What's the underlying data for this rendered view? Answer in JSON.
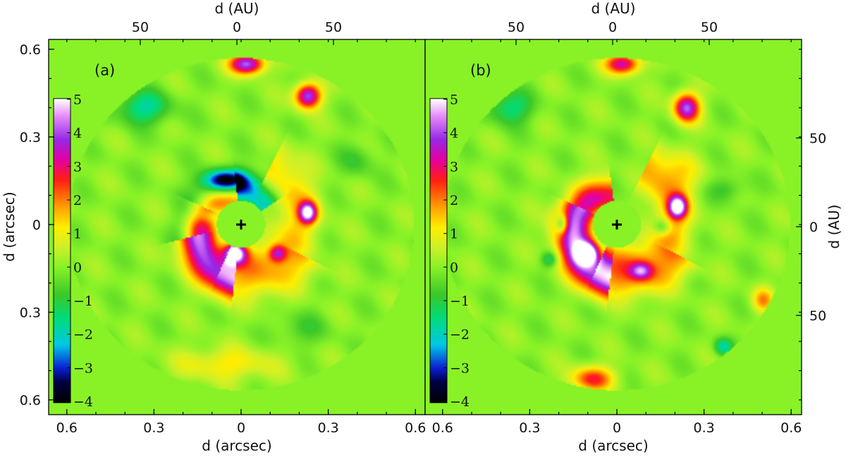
{
  "chart_data": {
    "type": "heatmap",
    "panels": [
      {
        "label": "(a)",
        "colorbar": {
          "min": -4,
          "max": 5,
          "ticks": [
            "5",
            "4",
            "3",
            "2",
            "1",
            "0",
            "−1",
            "−2",
            "−3",
            "−4"
          ]
        },
        "mask_radius_arcsec": 0.57,
        "inner_mask_radius_arcsec": 0.08,
        "star": [
          0,
          0
        ],
        "features": [
          {
            "kind": "spiral",
            "r0": 0.1,
            "b": 0.22,
            "theta0": 1.7,
            "theta1": 4.6,
            "value": 3.2,
            "width": 0.045
          },
          {
            "kind": "spiral",
            "r0": 0.12,
            "b": 0.2,
            "theta0": 4.3,
            "theta1": 7.4,
            "value": 1.4,
            "width": 0.055
          },
          {
            "kind": "spiral",
            "r0": 0.1,
            "b": 0.22,
            "theta0": 0.6,
            "theta1": 3.4,
            "value": -2.2,
            "width": 0.04
          },
          {
            "kind": "spiral",
            "r0": 0.14,
            "b": 0.18,
            "theta0": 2.7,
            "theta1": 5.8,
            "value": 0.9,
            "width": 0.05
          },
          {
            "kind": "blob",
            "x": 0.02,
            "y": 0.55,
            "sx": 0.04,
            "sy": 0.025,
            "value": 4.3
          },
          {
            "kind": "blob",
            "x": 0.22,
            "y": 0.44,
            "sx": 0.03,
            "sy": 0.03,
            "value": 4.2
          },
          {
            "kind": "blob",
            "x": 0.22,
            "y": 0.04,
            "sx": 0.02,
            "sy": 0.025,
            "value": 4.5
          },
          {
            "kind": "blob",
            "x": -0.05,
            "y": 0.15,
            "sx": 0.05,
            "sy": 0.025,
            "value": -3.6
          },
          {
            "kind": "blob",
            "x": -0.32,
            "y": 0.4,
            "sx": 0.06,
            "sy": 0.04,
            "value": -1.8
          },
          {
            "kind": "blob",
            "x": -0.02,
            "y": -0.1,
            "sx": 0.025,
            "sy": 0.025,
            "value": 4.8
          },
          {
            "kind": "blob",
            "x": 0.12,
            "y": -0.1,
            "sx": 0.02,
            "sy": 0.02,
            "value": 2.4
          },
          {
            "kind": "blob",
            "x": -0.1,
            "y": 0.03,
            "sx": 0.03,
            "sy": 0.02,
            "value": -1.2
          },
          {
            "kind": "blob",
            "x": 0.38,
            "y": 0.22,
            "sx": 0.04,
            "sy": 0.04,
            "value": -0.8
          },
          {
            "kind": "blob",
            "x": -0.05,
            "y": -0.48,
            "sx": 0.12,
            "sy": 0.04,
            "value": 1.2
          },
          {
            "kind": "blob",
            "x": 0.2,
            "y": -0.36,
            "sx": 0.06,
            "sy": 0.04,
            "value": -0.7
          }
        ]
      },
      {
        "label": "(b)",
        "colorbar": {
          "min": -4,
          "max": 5,
          "ticks": [
            "5",
            "4",
            "3",
            "2",
            "1",
            "0",
            "−1",
            "−2",
            "−3",
            "−4"
          ]
        },
        "mask_radius_arcsec": 0.57,
        "inner_mask_radius_arcsec": 0.08,
        "star": [
          0,
          0
        ],
        "features": [
          {
            "kind": "spiral",
            "r0": 0.1,
            "b": 0.22,
            "theta0": 1.7,
            "theta1": 4.6,
            "value": 3.1,
            "width": 0.045
          },
          {
            "kind": "spiral",
            "r0": 0.12,
            "b": 0.2,
            "theta0": 4.3,
            "theta1": 7.4,
            "value": 1.7,
            "width": 0.05
          },
          {
            "kind": "spiral",
            "r0": 0.14,
            "b": 0.18,
            "theta0": 2.7,
            "theta1": 5.8,
            "value": 1.2,
            "width": 0.045
          },
          {
            "kind": "blob",
            "x": 0.02,
            "y": 0.55,
            "sx": 0.04,
            "sy": 0.025,
            "value": 3.5
          },
          {
            "kind": "blob",
            "x": 0.23,
            "y": 0.4,
            "sx": 0.03,
            "sy": 0.035,
            "value": 4.1
          },
          {
            "kind": "blob",
            "x": 0.2,
            "y": 0.06,
            "sx": 0.02,
            "sy": 0.025,
            "value": 4.6
          },
          {
            "kind": "blob",
            "x": -0.1,
            "y": -0.1,
            "sx": 0.025,
            "sy": 0.025,
            "value": 5.0
          },
          {
            "kind": "blob",
            "x": 0.08,
            "y": -0.16,
            "sx": 0.025,
            "sy": 0.02,
            "value": 2.6
          },
          {
            "kind": "blob",
            "x": -0.18,
            "y": 0.0,
            "sx": 0.015,
            "sy": 0.025,
            "value": -2.6
          },
          {
            "kind": "blob",
            "x": -0.35,
            "y": 0.4,
            "sx": 0.05,
            "sy": 0.04,
            "value": -1.6
          },
          {
            "kind": "blob",
            "x": -0.22,
            "y": -0.12,
            "sx": 0.02,
            "sy": 0.02,
            "value": -1.6
          },
          {
            "kind": "blob",
            "x": 0.15,
            "y": -0.01,
            "sx": 0.02,
            "sy": 0.02,
            "value": -1.5
          },
          {
            "kind": "blob",
            "x": 0.35,
            "y": -0.42,
            "sx": 0.02,
            "sy": 0.02,
            "value": -1.8
          },
          {
            "kind": "blob",
            "x": 0.48,
            "y": -0.26,
            "sx": 0.025,
            "sy": 0.03,
            "value": 1.8
          },
          {
            "kind": "blob",
            "x": -0.08,
            "y": -0.53,
            "sx": 0.05,
            "sy": 0.03,
            "value": 2.6
          },
          {
            "kind": "blob",
            "x": 0.22,
            "y": 0.18,
            "sx": 0.05,
            "sy": 0.05,
            "value": 0.8
          },
          {
            "kind": "blob",
            "x": 0.36,
            "y": 0.12,
            "sx": 0.04,
            "sy": 0.03,
            "value": -0.9
          }
        ]
      }
    ],
    "x_axis": {
      "label": "d (arcsec)",
      "range": [
        -0.65,
        0.65
      ],
      "tick_values": [
        -0.6,
        -0.3,
        0,
        0.3,
        0.6
      ],
      "tick_labels": [
        "0.6",
        "0.3",
        "0",
        "0.3",
        "0.6"
      ]
    },
    "y_axis_left": {
      "label": "d (arcsec)",
      "range": [
        -0.6,
        0.6
      ],
      "tick_values": [
        0.6,
        0.3,
        0,
        -0.3,
        -0.6
      ],
      "tick_labels": [
        "0.6",
        "0.3",
        "0",
        "0.3",
        "0.6"
      ]
    },
    "x_axis_top": {
      "label": "d (AU)",
      "tick_values": [
        -50,
        0,
        50
      ],
      "tick_labels": [
        "50",
        "0",
        "50"
      ]
    },
    "y_axis_right": {
      "label": "d (AU)",
      "tick_values": [
        50,
        0,
        -50
      ],
      "tick_labels": [
        "50",
        "0",
        "50"
      ]
    },
    "colors": {
      "background": "#88f227",
      "star_marker": "#000000"
    }
  }
}
